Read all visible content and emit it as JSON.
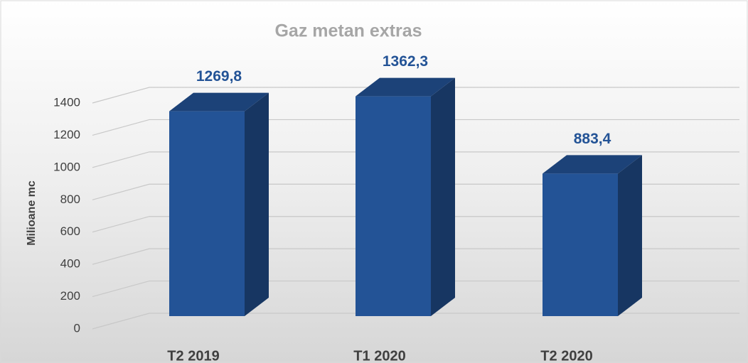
{
  "chart_data": {
    "type": "bar3d",
    "title": "Gaz metan extras",
    "y_label": "Milioane mc",
    "categories": [
      "T2 2019",
      "T1 2020",
      "T2 2020"
    ],
    "values": [
      1269.8,
      1362.3,
      883.4
    ],
    "value_labels": [
      "1269,8",
      "1362,3",
      "883,4"
    ],
    "color": "#235396",
    "ylim": [
      0,
      1400
    ],
    "yticks": [
      0,
      200,
      400,
      600,
      800,
      1000,
      1200,
      1400
    ],
    "grid": true
  }
}
